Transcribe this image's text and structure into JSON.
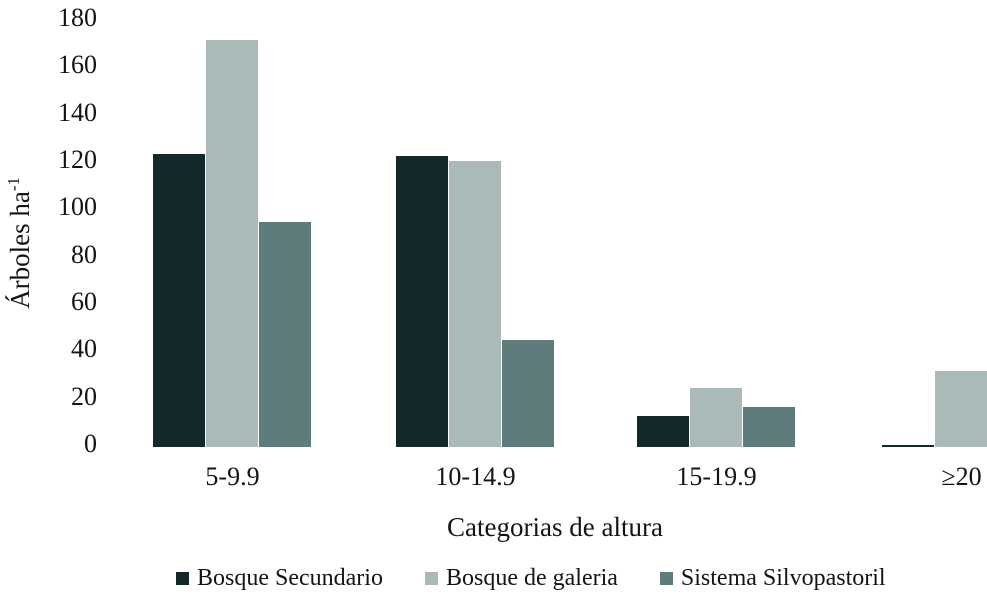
{
  "chart_data": {
    "type": "bar",
    "title": "",
    "categories": [
      "5-9.9",
      "10-14.9",
      "15-19.9",
      "≥20"
    ],
    "series": [
      {
        "name": "Bosque Secundario",
        "color": "#122829",
        "values": [
          124,
          123,
          13,
          1
        ]
      },
      {
        "name": "Bosque de galeria",
        "color": "#a9bab8",
        "values": [
          172,
          121,
          25,
          32
        ]
      },
      {
        "name": "Sistema Silvopastoril",
        "color": "#5f7c7c",
        "values": [
          95,
          45,
          17,
          null
        ]
      }
    ],
    "xlabel": "Categorias de altura",
    "ylabel": "Árboles ha",
    "ylabel_superscript": "-1",
    "ylim": [
      0,
      180
    ],
    "yticks": [
      0,
      20,
      40,
      60,
      80,
      100,
      120,
      140,
      160,
      180
    ],
    "grid": false,
    "axis_lines": false,
    "legend_position": "bottom",
    "background": "#ffffff",
    "text_color": "#141414"
  }
}
